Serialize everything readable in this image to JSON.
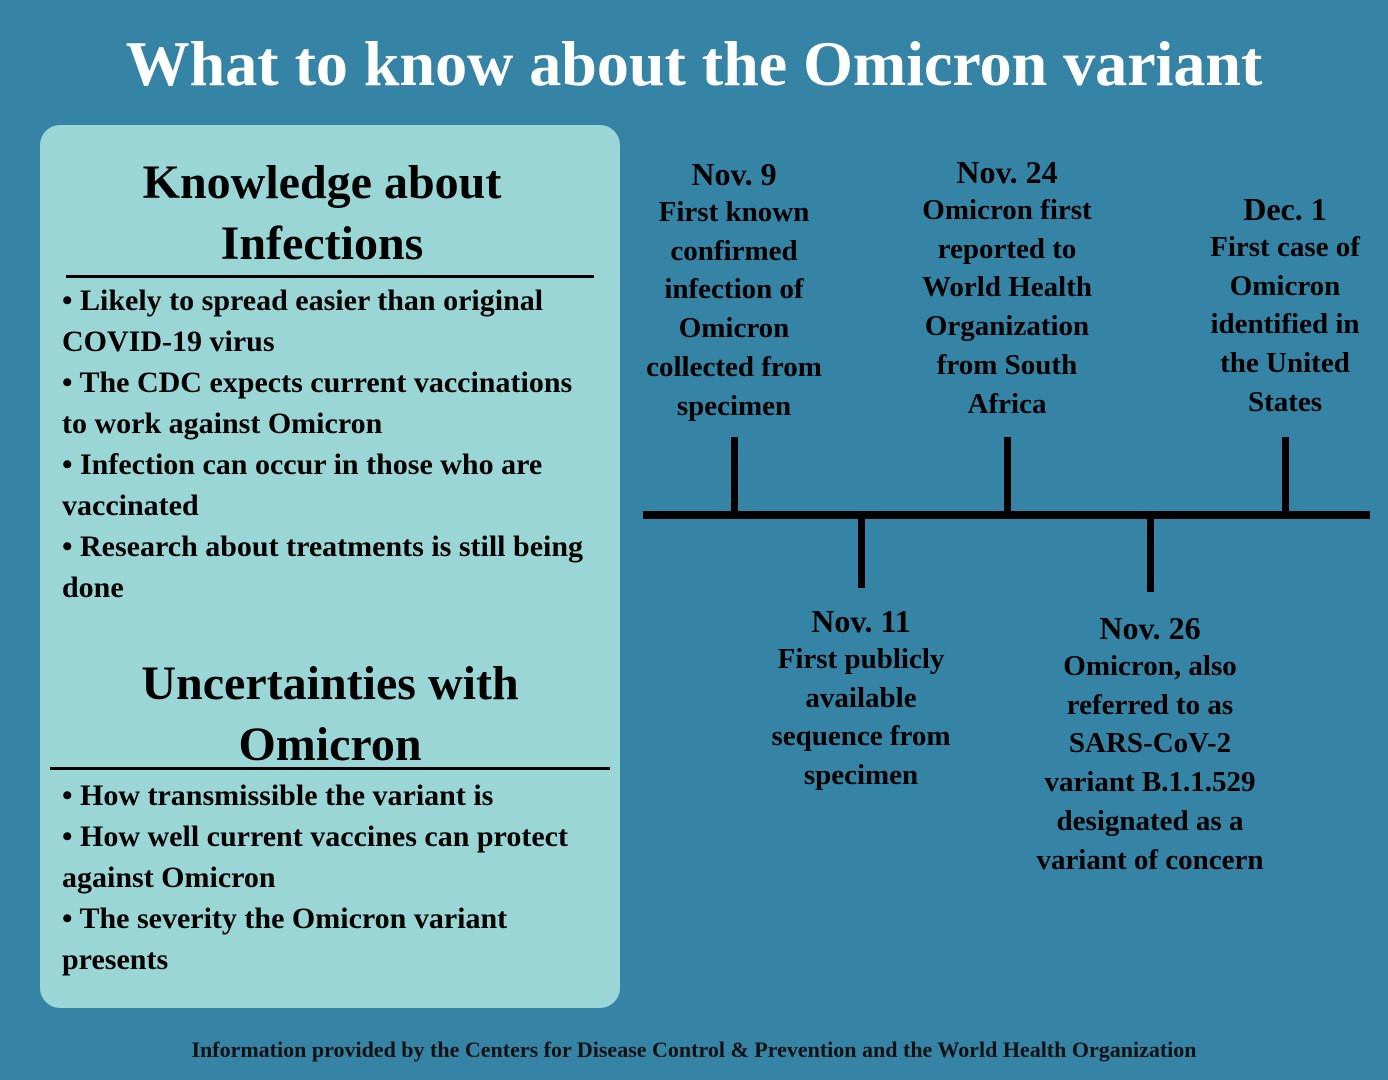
{
  "header": {
    "title": "What to know about the Omicron variant"
  },
  "sections": [
    {
      "heading": "Knowledge about Infections",
      "bullets": [
        "• Likely to spread easier than original COVID-19 virus",
        "• The CDC expects current vaccinations to work against Omicron",
        "• Infection can occur in those who are vaccinated",
        "• Research about treatments is still being done"
      ]
    },
    {
      "heading": "Uncertainties with Omicron",
      "bullets": [
        "• How transmissible the variant is",
        "• How well current vaccines can protect against Omicron",
        "• The severity the Omicron variant presents"
      ]
    }
  ],
  "timeline": [
    {
      "date": "Nov. 9",
      "lines": [
        "First known",
        "confirmed",
        "infection of",
        "Omicron",
        "collected from",
        "specimen"
      ]
    },
    {
      "date": "Nov. 11",
      "lines": [
        "First publicly",
        "available",
        "sequence from",
        "specimen"
      ]
    },
    {
      "date": "Nov. 24",
      "lines": [
        "Omicron first",
        "reported to",
        "World Health",
        "Organization",
        "from South",
        "Africa"
      ]
    },
    {
      "date": "Nov. 26",
      "lines": [
        "Omicron, also",
        "referred to as",
        "SARS-CoV-2",
        "variant B.1.1.529",
        "designated as a",
        "variant of concern"
      ]
    },
    {
      "date": "Dec. 1",
      "lines": [
        "First case of",
        "Omicron",
        "identified in",
        "the United",
        "States"
      ]
    }
  ],
  "footer": {
    "text": "Information provided by the Centers for Disease Control & Prevention and the World Health Organization"
  }
}
